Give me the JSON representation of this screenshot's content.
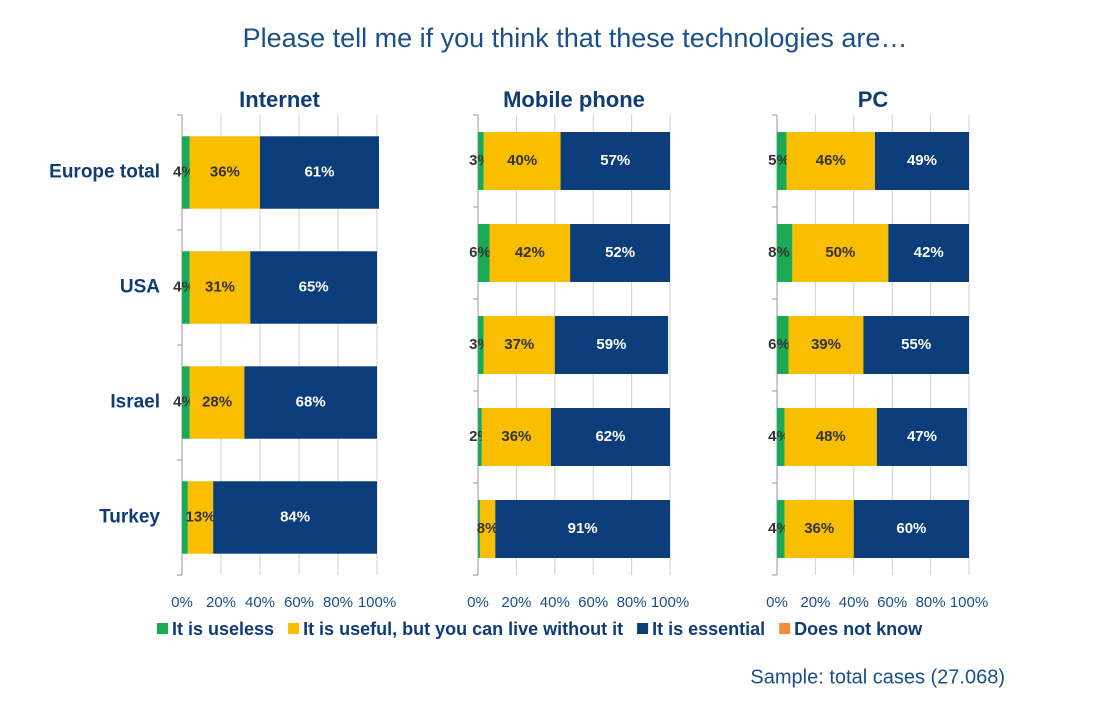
{
  "title": "Please tell me if you think that these technologies are…",
  "note": "Sample: total cases (27.068)",
  "chart_data": [
    {
      "type": "bar",
      "orientation": "horizontal",
      "title": "Internet",
      "categories": [
        "Europe total",
        "USA",
        "Israel",
        "Turkey"
      ],
      "xlim": [
        0,
        100
      ],
      "xticks": [
        {
          "value": 0,
          "label": "0%"
        },
        {
          "value": 20,
          "label": "20%"
        },
        {
          "value": 40,
          "label": "40%"
        },
        {
          "value": 60,
          "label": "60%"
        },
        {
          "value": 80,
          "label": "80%"
        },
        {
          "value": 100,
          "label": "100%"
        }
      ],
      "grid": true,
      "series": [
        {
          "name": "It is useless",
          "color": "#1aaa55",
          "values": [
            4,
            4,
            4,
            3
          ],
          "value_labels": [
            "4%",
            "4%",
            "4%",
            null
          ]
        },
        {
          "name": "It is useful, but you can live without it",
          "color": "#f9be00",
          "values": [
            36,
            31,
            28,
            13
          ],
          "value_labels": [
            "36%",
            "31%",
            "28%",
            "13%"
          ]
        },
        {
          "name": "It is essential",
          "color": "#0a3d7a",
          "values": [
            61,
            65,
            68,
            84
          ],
          "value_labels": [
            "61%",
            "65%",
            "68%",
            "84%"
          ]
        },
        {
          "name": "Does not know",
          "color": "#f58a3c",
          "values": [
            0,
            0,
            0,
            0
          ],
          "value_labels": [
            null,
            null,
            null,
            null
          ]
        }
      ]
    },
    {
      "type": "bar",
      "orientation": "horizontal",
      "title": "Mobile phone",
      "categories": [
        null,
        null,
        null,
        null,
        null
      ],
      "xlim": [
        0,
        100
      ],
      "xticks": [
        {
          "value": 0,
          "label": "0%"
        },
        {
          "value": 20,
          "label": "20%"
        },
        {
          "value": 40,
          "label": "40%"
        },
        {
          "value": 60,
          "label": "60%"
        },
        {
          "value": 80,
          "label": "80%"
        },
        {
          "value": 100,
          "label": "100%"
        }
      ],
      "grid": true,
      "series": [
        {
          "name": "It is useless",
          "color": "#1aaa55",
          "values": [
            3,
            6,
            3,
            2,
            1
          ],
          "value_labels": [
            "3%",
            "6%",
            "3%",
            "2%",
            null
          ]
        },
        {
          "name": "It is useful, but you can live without it",
          "color": "#f9be00",
          "values": [
            40,
            42,
            37,
            36,
            8
          ],
          "value_labels": [
            "40%",
            "42%",
            "37%",
            "36%",
            "8%"
          ]
        },
        {
          "name": "It is essential",
          "color": "#0a3d7a",
          "values": [
            57,
            52,
            59,
            62,
            91
          ],
          "value_labels": [
            "57%",
            "52%",
            "59%",
            "62%",
            "91%"
          ]
        },
        {
          "name": "Does not know",
          "color": "#f58a3c",
          "values": [
            0,
            0,
            0,
            0,
            0
          ],
          "value_labels": [
            null,
            null,
            null,
            null,
            null
          ]
        }
      ]
    },
    {
      "type": "bar",
      "orientation": "horizontal",
      "title": "PC",
      "categories": [
        null,
        null,
        null,
        null,
        null
      ],
      "xlim": [
        0,
        100
      ],
      "xticks": [
        {
          "value": 0,
          "label": "0%"
        },
        {
          "value": 20,
          "label": "20%"
        },
        {
          "value": 40,
          "label": "40%"
        },
        {
          "value": 60,
          "label": "60%"
        },
        {
          "value": 80,
          "label": "80%"
        },
        {
          "value": 100,
          "label": "100%"
        }
      ],
      "grid": true,
      "series": [
        {
          "name": "It is useless",
          "color": "#1aaa55",
          "values": [
            5,
            8,
            6,
            4,
            4
          ],
          "value_labels": [
            "5%",
            "8%",
            "6%",
            "4%",
            "4%"
          ]
        },
        {
          "name": "It is useful, but you can live without it",
          "color": "#f9be00",
          "values": [
            46,
            50,
            39,
            48,
            36
          ],
          "value_labels": [
            "46%",
            "50%",
            "39%",
            "48%",
            "36%"
          ]
        },
        {
          "name": "It is essential",
          "color": "#0a3d7a",
          "values": [
            49,
            42,
            55,
            47,
            60
          ],
          "value_labels": [
            "49%",
            "42%",
            "55%",
            "47%",
            "60%"
          ]
        },
        {
          "name": "Does not know",
          "color": "#f58a3c",
          "values": [
            0,
            0,
            0,
            0,
            0
          ],
          "value_labels": [
            null,
            null,
            null,
            null,
            null
          ]
        }
      ]
    }
  ]
}
